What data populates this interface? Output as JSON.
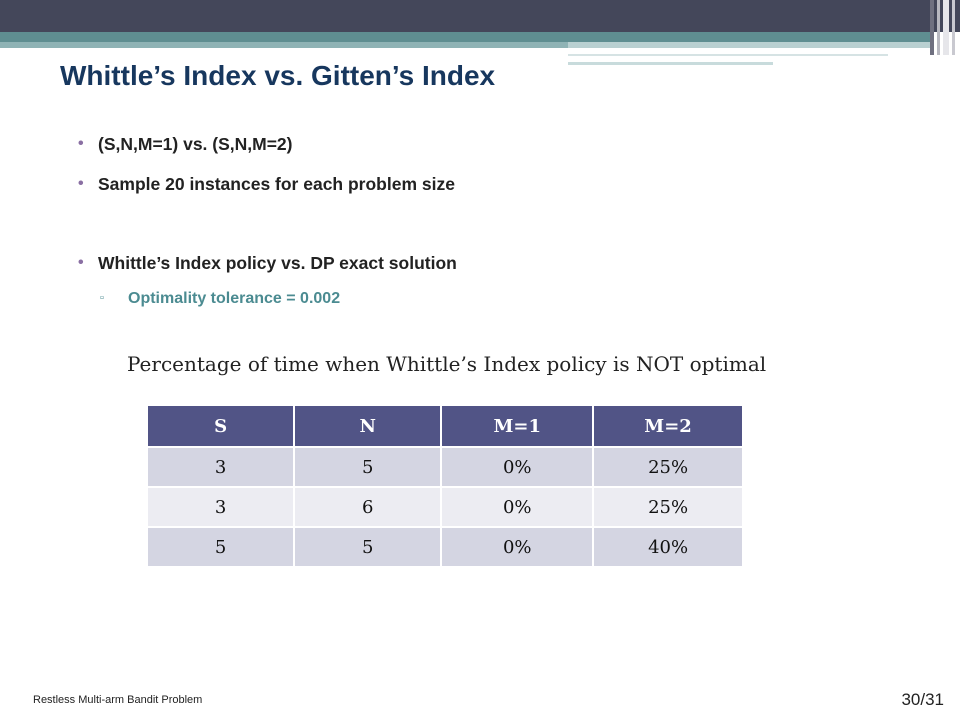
{
  "slide": {
    "title": "Whittle’s Index vs. Gitten’s Index",
    "bullets": [
      "(S,N,M=1) vs. (S,N,M=2)",
      "Sample 20 instances for each problem size",
      "Whittle’s Index policy vs. DP exact solution"
    ],
    "subbullet": "Optimality tolerance = 0.002",
    "subbullet_marker": "▫",
    "caption": "Percentage of time when Whittle’s Index policy is NOT optimal",
    "table": {
      "headers": [
        "S",
        "N",
        "M=1",
        "M=2"
      ],
      "rows": [
        [
          "3",
          "5",
          "0%",
          "25%"
        ],
        [
          "3",
          "6",
          "0%",
          "25%"
        ],
        [
          "5",
          "5",
          "0%",
          "40%"
        ]
      ]
    },
    "footer": "Restless Multi-arm Bandit Problem",
    "page_number": "30/31"
  },
  "colors": {
    "title": "#17375e",
    "header_bar": "#44475a",
    "teal_band": "#5f8e91",
    "table_header": "#515486",
    "row_dark": "#d4d5e2",
    "row_light": "#ececf2",
    "subbullet": "#4b8b91"
  }
}
